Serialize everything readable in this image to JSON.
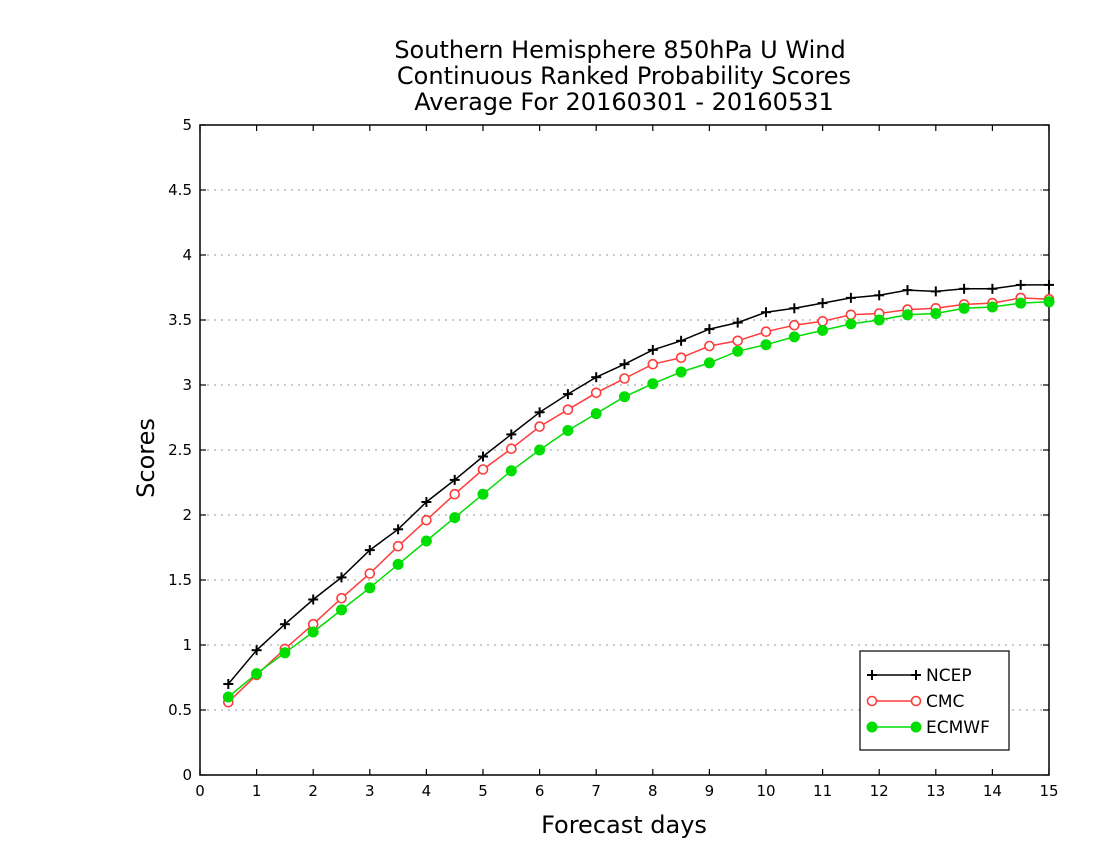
{
  "chart_data": {
    "type": "line",
    "title": [
      "Southern Hemisphere 850hPa U Wind",
      "Continuous Ranked Probability Scores",
      "Average For 20160301 - 20160531"
    ],
    "xlabel": "Forecast days",
    "ylabel": "Scores",
    "xlim": [
      0,
      15
    ],
    "ylim": [
      0,
      5
    ],
    "xticks": [
      "0",
      "1",
      "2",
      "3",
      "4",
      "5",
      "6",
      "7",
      "8",
      "9",
      "10",
      "11",
      "12",
      "13",
      "14",
      "15"
    ],
    "yticks": [
      "0",
      "0.5",
      "1",
      "1.5",
      "2",
      "2.5",
      "3",
      "3.5",
      "4",
      "4.5",
      "5"
    ],
    "grid": "dotted horizontal",
    "legend_position": "bottom-right",
    "x": [
      0.5,
      1,
      1.5,
      2,
      2.5,
      3,
      3.5,
      4,
      4.5,
      5,
      5.5,
      6,
      6.5,
      7,
      7.5,
      8,
      8.5,
      9,
      9.5,
      10,
      10.5,
      11,
      11.5,
      12,
      12.5,
      13,
      13.5,
      14,
      14.5,
      15
    ],
    "series": [
      {
        "name": "NCEP",
        "color": "#000000",
        "marker": "plus",
        "values": [
          0.7,
          0.96,
          1.16,
          1.35,
          1.52,
          1.73,
          1.89,
          2.1,
          2.27,
          2.45,
          2.62,
          2.79,
          2.93,
          3.06,
          3.16,
          3.27,
          3.34,
          3.43,
          3.48,
          3.56,
          3.59,
          3.63,
          3.67,
          3.69,
          3.73,
          3.72,
          3.74,
          3.74,
          3.77,
          3.77
        ]
      },
      {
        "name": "CMC",
        "color": "#ff3b3b",
        "marker": "open-circle",
        "values": [
          0.56,
          0.77,
          0.97,
          1.16,
          1.36,
          1.55,
          1.76,
          1.96,
          2.16,
          2.35,
          2.51,
          2.68,
          2.81,
          2.94,
          3.05,
          3.16,
          3.21,
          3.3,
          3.34,
          3.41,
          3.46,
          3.49,
          3.54,
          3.55,
          3.58,
          3.59,
          3.62,
          3.63,
          3.67,
          3.66
        ]
      },
      {
        "name": "ECMWF",
        "color": "#00dd00",
        "marker": "filled-circle",
        "values": [
          0.6,
          0.78,
          0.94,
          1.1,
          1.27,
          1.44,
          1.62,
          1.8,
          1.98,
          2.16,
          2.34,
          2.5,
          2.65,
          2.78,
          2.91,
          3.01,
          3.1,
          3.17,
          3.26,
          3.31,
          3.37,
          3.42,
          3.47,
          3.5,
          3.54,
          3.55,
          3.59,
          3.6,
          3.63,
          3.64
        ]
      }
    ]
  }
}
